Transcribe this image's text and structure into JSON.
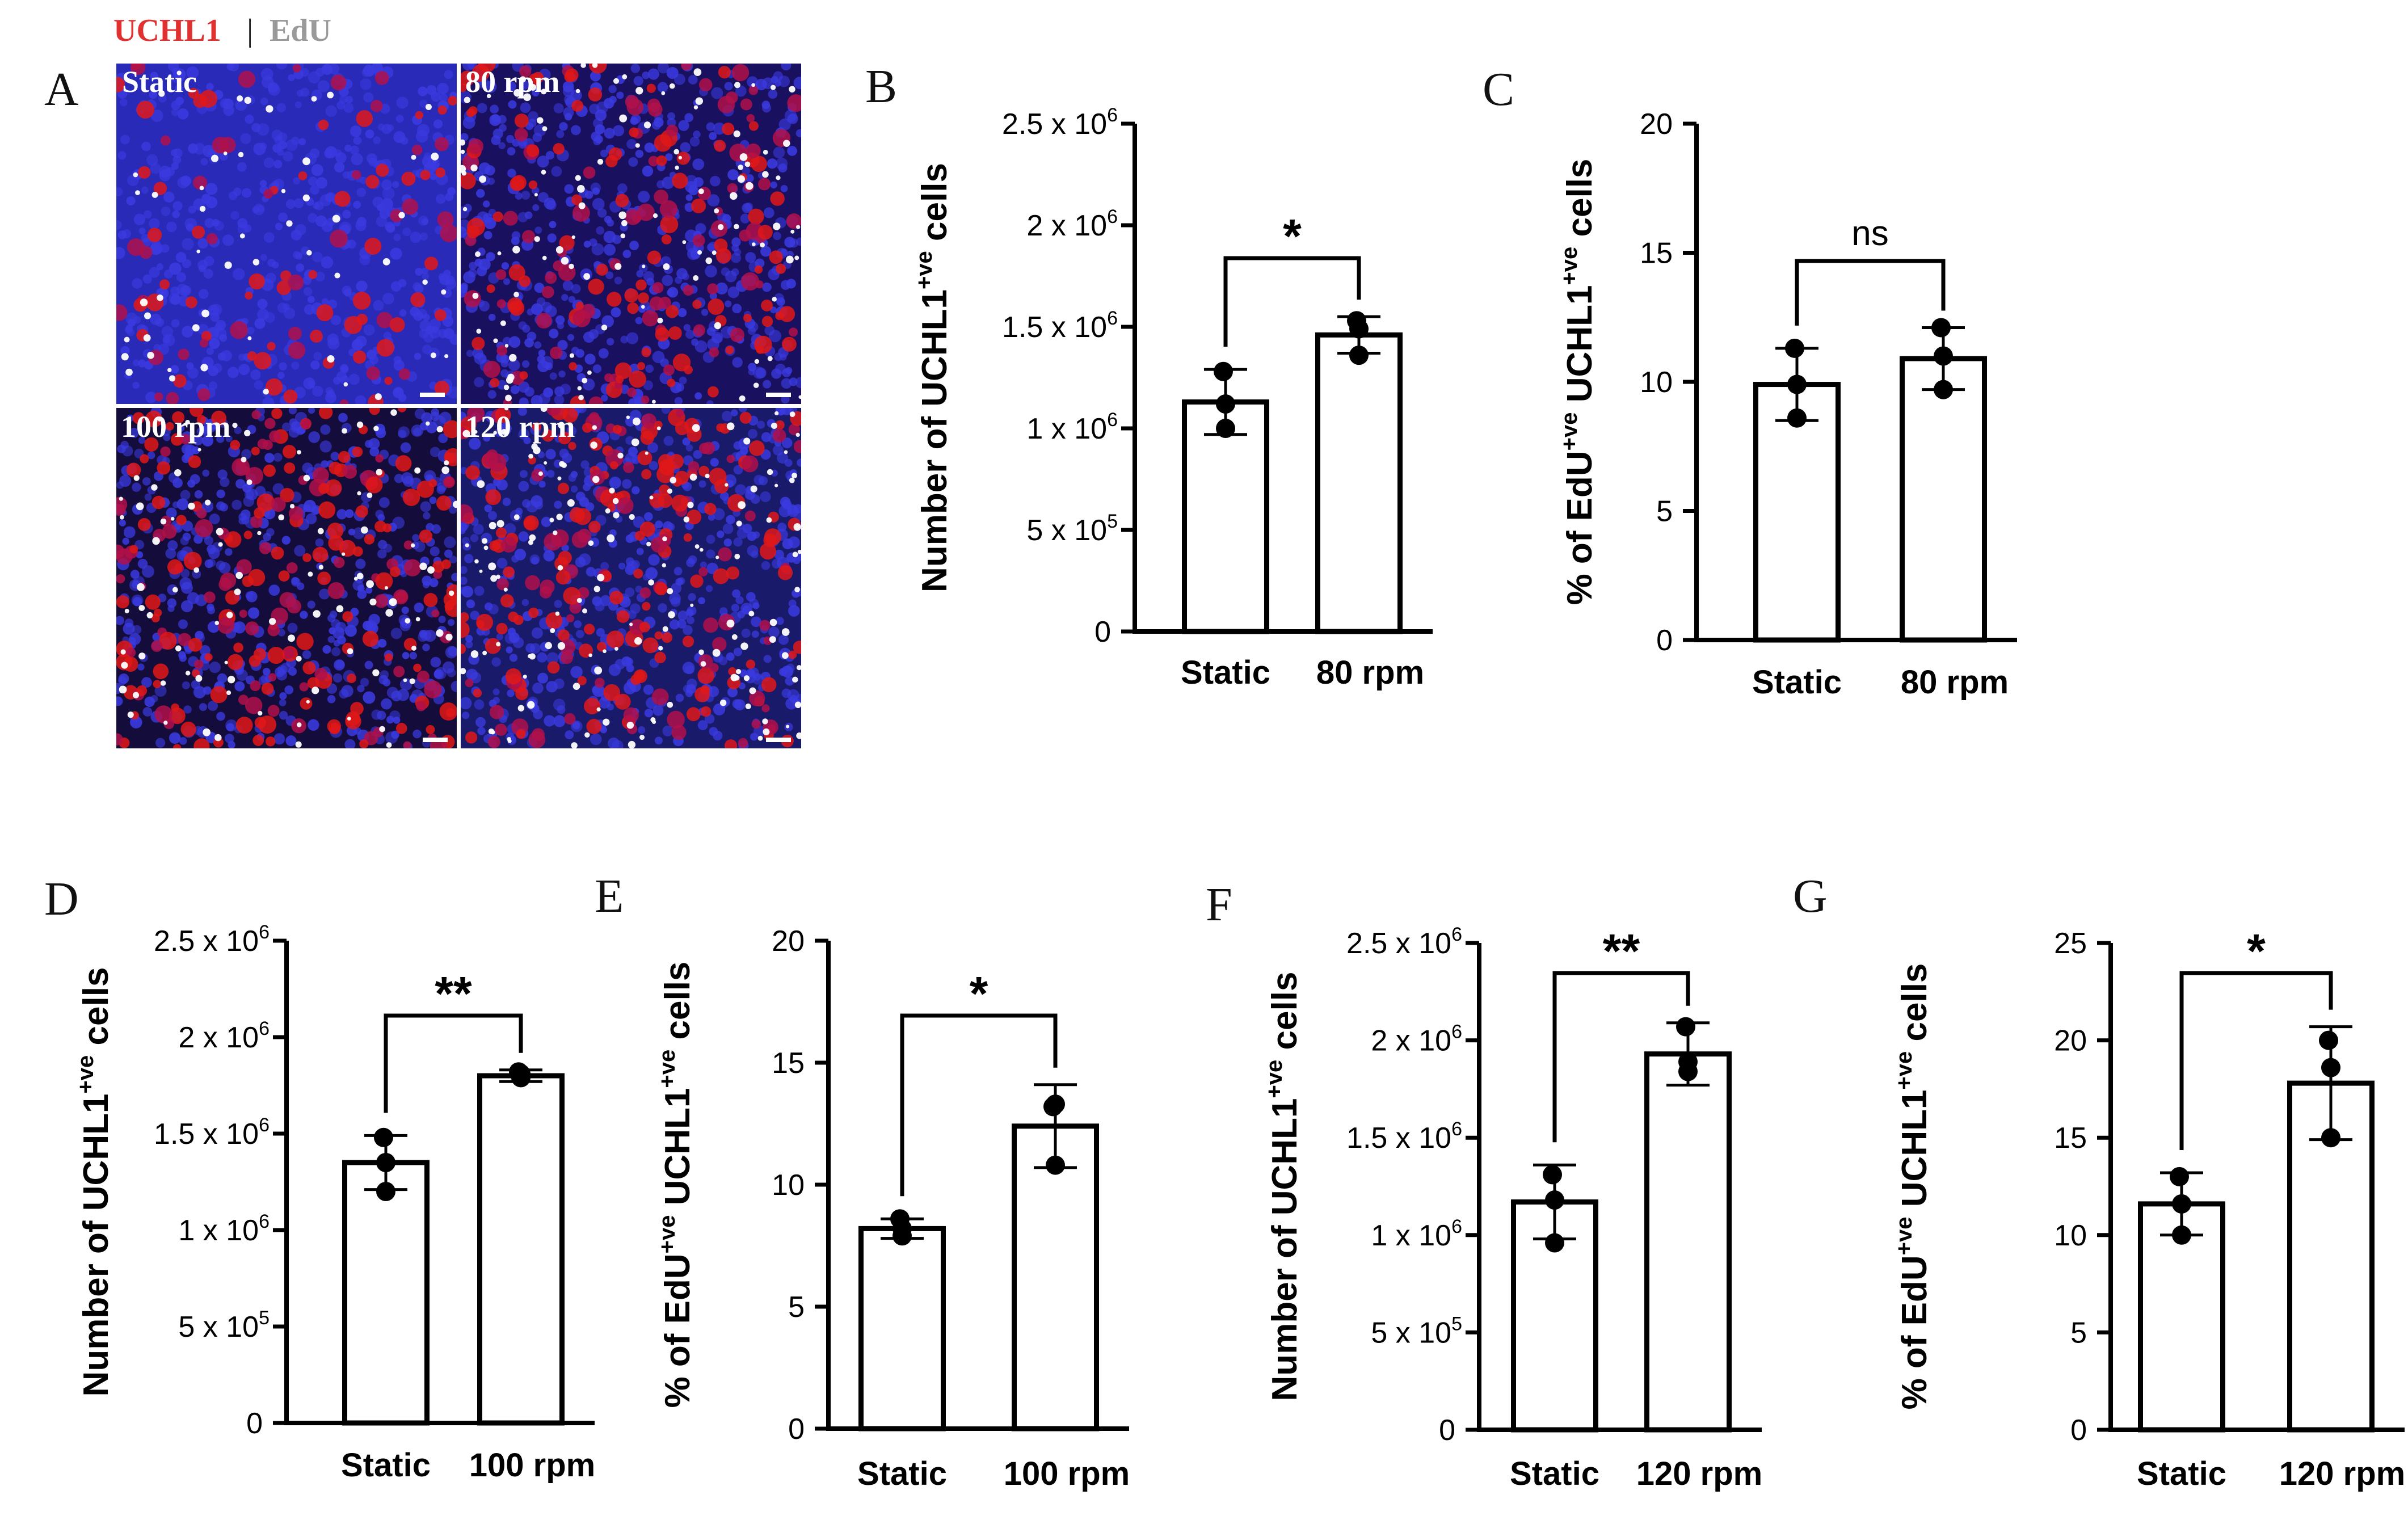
{
  "figure": {
    "legend": {
      "uchl1": "UCHL1",
      "sep": "|",
      "edu": "EdU",
      "uchl1_color": "#e03030",
      "edu_color": "#9a9a9a"
    },
    "micrographs": {
      "panel_letter": "A",
      "tiles": [
        {
          "label": "Static",
          "red_cell_fraction": 0.18,
          "white_cell_fraction": 0.1,
          "blue_background": "#2a2ab8"
        },
        {
          "label": "80 rpm",
          "red_cell_fraction": 0.35,
          "white_cell_fraction": 0.22,
          "blue_background": "#1a1060"
        },
        {
          "label": "100 rpm",
          "red_cell_fraction": 0.45,
          "white_cell_fraction": 0.2,
          "blue_background": "#140c3a"
        },
        {
          "label": "120 rpm",
          "red_cell_fraction": 0.45,
          "white_cell_fraction": 0.3,
          "blue_background": "#1a1a6a"
        }
      ]
    }
  },
  "chart_data": [
    {
      "panel": "B",
      "type": "bar",
      "ylabel": {
        "pre": "Number of UCHL1",
        "sup": "+ve",
        "post": " cells"
      },
      "categories": [
        "Static",
        "80 rpm"
      ],
      "ylim": [
        0,
        2500000
      ],
      "yticks": [
        {
          "value": 0,
          "base": "0",
          "exp": ""
        },
        {
          "value": 500000,
          "base": "5 x 10",
          "exp": "5"
        },
        {
          "value": 1000000,
          "base": "1 x 10",
          "exp": "6"
        },
        {
          "value": 1500000,
          "base": "1.5 x 10",
          "exp": "6"
        },
        {
          "value": 2000000,
          "base": "2 x 10",
          "exp": "6"
        },
        {
          "value": 2500000,
          "base": "2.5 x 10",
          "exp": "6"
        }
      ],
      "means": [
        1130000,
        1460000
      ],
      "sd": [
        160000,
        90000
      ],
      "points": [
        [
          1280000,
          1000000,
          1120000
        ],
        [
          1530000,
          1490000,
          1360000
        ]
      ],
      "significance": "*"
    },
    {
      "panel": "C",
      "type": "bar",
      "ylabel": {
        "pre": "% of EdU",
        "sup": "+ve",
        "mid": " UCHL1",
        "sup2": "+ve",
        "post": " cells"
      },
      "categories": [
        "Static",
        "80 rpm"
      ],
      "ylim": [
        0,
        20
      ],
      "yticks": [
        {
          "value": 0,
          "base": "0",
          "exp": ""
        },
        {
          "value": 5,
          "base": "5",
          "exp": ""
        },
        {
          "value": 10,
          "base": "10",
          "exp": ""
        },
        {
          "value": 15,
          "base": "15",
          "exp": ""
        },
        {
          "value": 20,
          "base": "20",
          "exp": ""
        }
      ],
      "means": [
        9.9,
        10.9
      ],
      "sd": [
        1.4,
        1.2
      ],
      "points": [
        [
          11.3,
          8.6,
          9.9
        ],
        [
          12.1,
          9.7,
          11.0
        ]
      ],
      "significance": "ns"
    },
    {
      "panel": "D",
      "type": "bar",
      "ylabel": {
        "pre": "Number of UCHL1",
        "sup": "+ve",
        "post": " cells"
      },
      "categories": [
        "Static",
        "100 rpm"
      ],
      "ylim": [
        0,
        2500000
      ],
      "yticks": [
        {
          "value": 0,
          "base": "0",
          "exp": ""
        },
        {
          "value": 500000,
          "base": "5 x 10",
          "exp": "5"
        },
        {
          "value": 1000000,
          "base": "1 x 10",
          "exp": "6"
        },
        {
          "value": 1500000,
          "base": "1.5 x 10",
          "exp": "6"
        },
        {
          "value": 2000000,
          "base": "2 x 10",
          "exp": "6"
        },
        {
          "value": 2500000,
          "base": "2.5 x 10",
          "exp": "6"
        }
      ],
      "means": [
        1350000,
        1800000
      ],
      "sd": [
        140000,
        30000
      ],
      "points": [
        [
          1480000,
          1200000,
          1350000
        ],
        [
          1820000,
          1810000,
          1790000
        ]
      ],
      "significance": "**"
    },
    {
      "panel": "E",
      "type": "bar",
      "ylabel": {
        "pre": "% of EdU",
        "sup": "+ve",
        "mid": " UCHL1",
        "sup2": "+ve",
        "post": " cells"
      },
      "categories": [
        "Static",
        "100 rpm"
      ],
      "ylim": [
        0,
        20
      ],
      "yticks": [
        {
          "value": 0,
          "base": "0",
          "exp": ""
        },
        {
          "value": 5,
          "base": "5",
          "exp": ""
        },
        {
          "value": 10,
          "base": "10",
          "exp": ""
        },
        {
          "value": 15,
          "base": "15",
          "exp": ""
        },
        {
          "value": 20,
          "base": "20",
          "exp": ""
        }
      ],
      "means": [
        8.2,
        12.4
      ],
      "sd": [
        0.4,
        1.7
      ],
      "points": [
        [
          8.6,
          7.9,
          8.2
        ],
        [
          13.2,
          10.8,
          13.3
        ]
      ],
      "significance": "*"
    },
    {
      "panel": "F",
      "type": "bar",
      "ylabel": {
        "pre": "Number of UCHL1",
        "sup": "+ve",
        "post": " cells"
      },
      "categories": [
        "Static",
        "120 rpm"
      ],
      "ylim": [
        0,
        2500000
      ],
      "yticks": [
        {
          "value": 0,
          "base": "0",
          "exp": ""
        },
        {
          "value": 500000,
          "base": "5 x 10",
          "exp": "5"
        },
        {
          "value": 1000000,
          "base": "1 x 10",
          "exp": "6"
        },
        {
          "value": 1500000,
          "base": "1.5 x 10",
          "exp": "6"
        },
        {
          "value": 2000000,
          "base": "2 x 10",
          "exp": "6"
        },
        {
          "value": 2500000,
          "base": "2.5 x 10",
          "exp": "6"
        }
      ],
      "means": [
        1170000,
        1930000
      ],
      "sd": [
        190000,
        160000
      ],
      "points": [
        [
          1310000,
          960000,
          1180000
        ],
        [
          2070000,
          1840000,
          1890000
        ]
      ],
      "significance": "**"
    },
    {
      "panel": "G",
      "type": "bar",
      "ylabel": {
        "pre": "% of EdU",
        "sup": "+ve",
        "mid": " UCHL1",
        "sup2": "+ve",
        "post": " cells"
      },
      "categories": [
        "Static",
        "120 rpm"
      ],
      "ylim": [
        0,
        25
      ],
      "yticks": [
        {
          "value": 0,
          "base": "0",
          "exp": ""
        },
        {
          "value": 5,
          "base": "5",
          "exp": ""
        },
        {
          "value": 10,
          "base": "10",
          "exp": ""
        },
        {
          "value": 15,
          "base": "15",
          "exp": ""
        },
        {
          "value": 20,
          "base": "20",
          "exp": ""
        },
        {
          "value": 25,
          "base": "25",
          "exp": ""
        }
      ],
      "means": [
        11.6,
        17.8
      ],
      "sd": [
        1.6,
        2.9
      ],
      "points": [
        [
          13.0,
          10.0,
          11.6
        ],
        [
          20.0,
          15.0,
          18.6
        ]
      ],
      "significance": "*"
    }
  ]
}
